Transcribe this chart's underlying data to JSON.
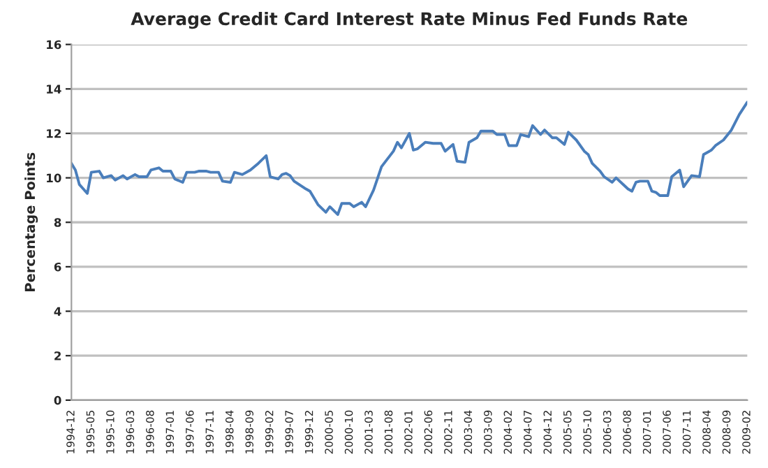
{
  "chart_data": {
    "type": "line",
    "title": "Average Credit Card Interest Rate Minus Fed Funds Rate",
    "ylabel": "Percentage Points",
    "x": [
      "1994-12",
      "1995-01",
      "1995-02",
      "1995-03",
      "1995-04",
      "1995-05",
      "1995-07",
      "1995-08",
      "1995-10",
      "1995-11",
      "1996-01",
      "1996-02",
      "1996-04",
      "1996-05",
      "1996-07",
      "1996-08",
      "1996-10",
      "1996-11",
      "1997-01",
      "1997-02",
      "1997-04",
      "1997-05",
      "1997-07",
      "1997-08",
      "1997-10",
      "1997-11",
      "1998-01",
      "1998-02",
      "1998-04",
      "1998-05",
      "1998-07",
      "1998-09",
      "1998-11",
      "1999-01",
      "1999-02",
      "1999-04",
      "1999-05",
      "1999-06",
      "1999-07",
      "1999-08",
      "1999-11",
      "1999-12",
      "2000-02",
      "2000-04",
      "2000-05",
      "2000-07",
      "2000-08",
      "2000-10",
      "2000-11",
      "2001-01",
      "2001-02",
      "2001-04",
      "2001-06",
      "2001-09",
      "2001-10",
      "2001-11",
      "2002-01",
      "2002-02",
      "2002-03",
      "2002-05",
      "2002-07",
      "2002-09",
      "2002-10",
      "2002-12",
      "2003-01",
      "2003-03",
      "2003-04",
      "2003-06",
      "2003-07",
      "2003-10",
      "2003-11",
      "2004-01",
      "2004-02",
      "2004-04",
      "2004-05",
      "2004-07",
      "2004-08",
      "2004-10",
      "2004-11",
      "2005-01",
      "2005-02",
      "2005-04",
      "2005-05",
      "2005-07",
      "2005-09",
      "2005-10",
      "2005-11",
      "2006-01",
      "2006-02",
      "2006-04",
      "2006-05",
      "2006-08",
      "2006-09",
      "2006-10",
      "2006-11",
      "2007-01",
      "2007-02",
      "2007-03",
      "2007-04",
      "2007-06",
      "2007-07",
      "2007-09",
      "2007-10",
      "2007-12",
      "2008-02",
      "2008-03",
      "2008-05",
      "2008-06",
      "2008-08",
      "2008-10",
      "2008-12",
      "2009-02"
    ],
    "series": [
      {
        "color": "#4a7ebb",
        "values": [
          10.65,
          10.35,
          9.7,
          9.5,
          9.3,
          10.25,
          10.3,
          10.0,
          10.1,
          9.9,
          10.1,
          9.95,
          10.15,
          10.05,
          10.05,
          10.35,
          10.45,
          10.3,
          10.3,
          9.95,
          9.8,
          10.25,
          10.25,
          10.3,
          10.3,
          10.25,
          10.25,
          9.85,
          9.8,
          10.25,
          10.15,
          10.35,
          10.65,
          11.0,
          10.05,
          9.95,
          10.15,
          10.2,
          10.1,
          9.85,
          9.5,
          9.4,
          8.8,
          8.45,
          8.7,
          8.35,
          8.85,
          8.85,
          8.7,
          8.9,
          8.7,
          9.45,
          10.5,
          11.2,
          11.6,
          11.35,
          12.0,
          11.25,
          11.3,
          11.6,
          11.55,
          11.55,
          11.2,
          11.5,
          10.75,
          10.7,
          11.6,
          11.8,
          12.1,
          12.1,
          11.95,
          11.95,
          11.45,
          11.45,
          11.95,
          11.85,
          12.35,
          11.95,
          12.15,
          11.8,
          11.8,
          11.5,
          12.05,
          11.7,
          11.2,
          11.05,
          10.65,
          10.3,
          10.05,
          9.8,
          10.0,
          9.5,
          9.4,
          9.8,
          9.85,
          9.85,
          9.4,
          9.35,
          9.2,
          9.2,
          10.05,
          10.35,
          9.6,
          10.1,
          10.05,
          11.05,
          11.25,
          11.45,
          11.7,
          12.15,
          12.85,
          13.4
        ]
      }
    ],
    "xlim": [
      "1994-12",
      "2009-02"
    ],
    "xticks": [
      {
        "value": "1994-12",
        "label": "1994-12"
      },
      {
        "value": "1995-05",
        "label": "1995-05"
      },
      {
        "value": "1995-10",
        "label": "1995-10"
      },
      {
        "value": "1996-03",
        "label": "1996-03"
      },
      {
        "value": "1996-08",
        "label": "1996-08"
      },
      {
        "value": "1997-01",
        "label": "1997-01"
      },
      {
        "value": "1997-06",
        "label": "1997-06"
      },
      {
        "value": "1997-11",
        "label": "1997-11"
      },
      {
        "value": "1998-04",
        "label": "1998-04"
      },
      {
        "value": "1998-09",
        "label": "1998-09"
      },
      {
        "value": "1999-02",
        "label": "1999-02"
      },
      {
        "value": "1999-07",
        "label": "1999-07"
      },
      {
        "value": "1999-12",
        "label": "1999-12"
      },
      {
        "value": "2000-05",
        "label": "2000-05"
      },
      {
        "value": "2000-10",
        "label": "2000-10"
      },
      {
        "value": "2001-03",
        "label": "2001-03"
      },
      {
        "value": "2001-08",
        "label": "2001-08"
      },
      {
        "value": "2002-01",
        "label": "2002-01"
      },
      {
        "value": "2002-06",
        "label": "2002-06"
      },
      {
        "value": "2002-11",
        "label": "2002-11"
      },
      {
        "value": "2003-04",
        "label": "2003-04"
      },
      {
        "value": "2003-09",
        "label": "2003-09"
      },
      {
        "value": "2004-02",
        "label": "2004-02"
      },
      {
        "value": "2004-07",
        "label": "2004-07"
      },
      {
        "value": "2004-12",
        "label": "2004-12"
      },
      {
        "value": "2005-05",
        "label": "2005-05"
      },
      {
        "value": "2005-10",
        "label": "2005-10"
      },
      {
        "value": "2006-03",
        "label": "2006-03"
      },
      {
        "value": "2006-08",
        "label": "2006-08"
      },
      {
        "value": "2007-01",
        "label": "2007-01"
      },
      {
        "value": "2007-06",
        "label": "2007-06"
      },
      {
        "value": "2007-11",
        "label": "2007-11"
      },
      {
        "value": "2008-04",
        "label": "2008-04"
      },
      {
        "value": "2008-09",
        "label": "2008-09"
      },
      {
        "value": "2009-02",
        "label": "2009-02"
      }
    ],
    "ylim": [
      0,
      16
    ],
    "yticks": [
      0,
      2,
      4,
      6,
      8,
      10,
      12,
      14,
      16
    ],
    "grid": "y",
    "marker": "none",
    "line_style": "solid"
  }
}
